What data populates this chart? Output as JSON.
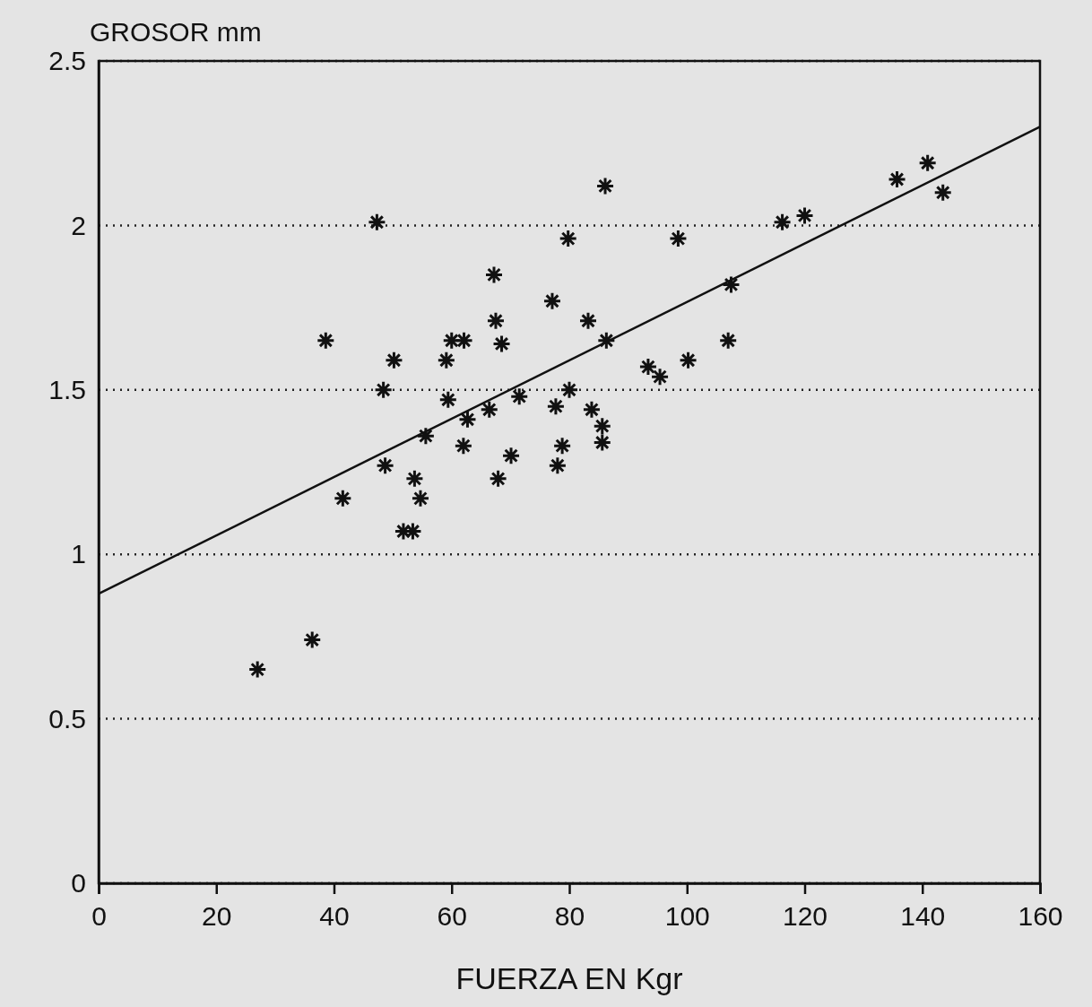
{
  "chart_data": {
    "type": "scatter",
    "xlabel": "FUERZA EN Kgr",
    "ylabel": "GROSOR mm",
    "xlim": [
      0,
      160
    ],
    "ylim": [
      0,
      2.5
    ],
    "xticks": [
      0,
      20,
      40,
      60,
      80,
      100,
      120,
      140,
      160
    ],
    "yticks": [
      0,
      0.5,
      1,
      1.5,
      2,
      2.5
    ],
    "grid": "y",
    "series": [
      {
        "marker": "cross",
        "color": "#111111",
        "x": [
          27,
          36.3,
          38.6,
          41.5,
          47.3,
          48.4,
          50.2,
          48.7,
          51.8,
          53.4,
          53.7,
          54.7,
          55.6,
          59.1,
          59.4,
          60,
          62.1,
          62,
          62.7,
          66.4,
          67.2,
          67.5,
          68.5,
          67.9,
          70.1,
          71.5,
          77.1,
          77.7,
          78,
          78.8,
          80,
          79.8,
          83.2,
          83.8,
          85.6,
          85.6,
          86.1,
          86.3,
          93.4,
          95.4,
          98.5,
          100.2,
          107,
          107.5,
          116.2,
          120,
          135.7,
          140.9,
          143.5
        ],
        "values": [
          0.65,
          0.74,
          1.65,
          1.17,
          2.01,
          1.5,
          1.59,
          1.27,
          1.07,
          1.07,
          1.23,
          1.17,
          1.36,
          1.59,
          1.47,
          1.65,
          1.65,
          1.33,
          1.41,
          1.44,
          1.85,
          1.71,
          1.64,
          1.23,
          1.3,
          1.48,
          1.77,
          1.45,
          1.27,
          1.33,
          1.5,
          1.96,
          1.71,
          1.44,
          1.39,
          1.34,
          2.12,
          1.65,
          1.57,
          1.54,
          1.96,
          1.59,
          1.65,
          1.82,
          2.01,
          2.03,
          2.14,
          2.19,
          2.1
        ]
      },
      {
        "type": "line",
        "color": "#111111",
        "x": [
          0,
          160
        ],
        "values": [
          0.88,
          2.3
        ]
      }
    ]
  }
}
